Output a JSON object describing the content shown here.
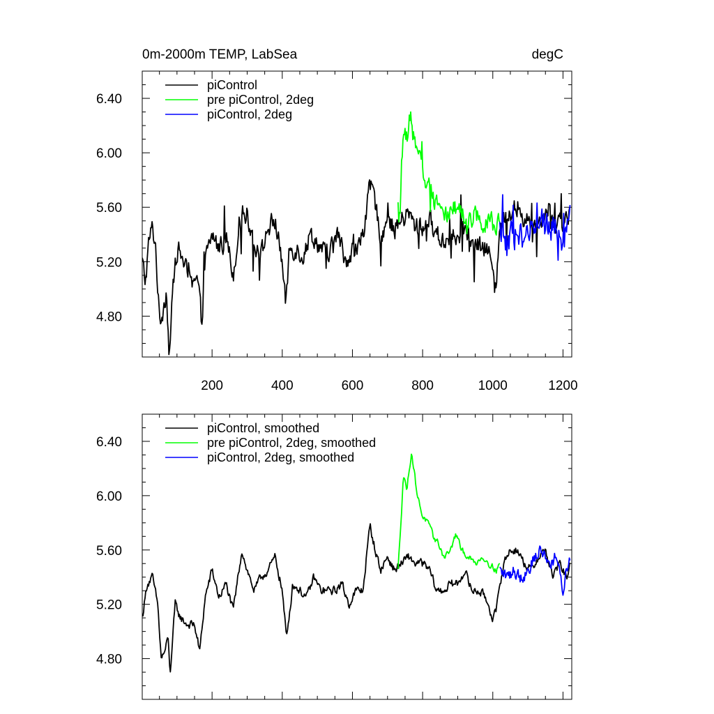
{
  "figure": {
    "title_left": "0m-2000m TEMP, LabSea",
    "title_right": "degC"
  },
  "colors": {
    "piControl": "#000000",
    "pre_piControl_2deg": "#00ff00",
    "piControl_2deg": "#0000ff"
  },
  "chart_data": [
    {
      "type": "line",
      "title": "0m-2000m TEMP, LabSea",
      "units": "degC",
      "xlabel": "",
      "ylabel": "",
      "xlim": [
        1,
        1225
      ],
      "ylim": [
        4.5,
        6.6
      ],
      "xticks": [
        200,
        400,
        600,
        800,
        1000,
        1200
      ],
      "xtick_labels": [
        "200",
        "400",
        "600",
        "800",
        "1000",
        "1200"
      ],
      "yticks": [
        4.8,
        5.2,
        5.6,
        6.0,
        6.4
      ],
      "ytick_labels": [
        "4.80",
        "5.20",
        "5.60",
        "6.00",
        "6.40"
      ],
      "legend_position": "top-left",
      "series": [
        {
          "name": "piControl",
          "color": "#000000",
          "x_range": [
            1,
            1220
          ],
          "anchors": [
            [
              1,
              5.2
            ],
            [
              10,
              5.05
            ],
            [
              20,
              5.35
            ],
            [
              30,
              5.45
            ],
            [
              40,
              5.3
            ],
            [
              50,
              4.75
            ],
            [
              60,
              4.85
            ],
            [
              70,
              5.0
            ],
            [
              78,
              4.52
            ],
            [
              90,
              5.05
            ],
            [
              100,
              5.3
            ],
            [
              120,
              5.2
            ],
            [
              140,
              5.0
            ],
            [
              160,
              5.05
            ],
            [
              170,
              4.75
            ],
            [
              180,
              5.2
            ],
            [
              200,
              5.4
            ],
            [
              220,
              5.3
            ],
            [
              240,
              5.4
            ],
            [
              260,
              5.1
            ],
            [
              280,
              5.55
            ],
            [
              300,
              5.55
            ],
            [
              320,
              5.35
            ],
            [
              340,
              5.25
            ],
            [
              360,
              5.45
            ],
            [
              380,
              5.5
            ],
            [
              400,
              5.2
            ],
            [
              410,
              4.85
            ],
            [
              420,
              5.3
            ],
            [
              440,
              5.3
            ],
            [
              460,
              5.25
            ],
            [
              480,
              5.4
            ],
            [
              500,
              5.35
            ],
            [
              520,
              5.25
            ],
            [
              540,
              5.3
            ],
            [
              560,
              5.4
            ],
            [
              580,
              5.2
            ],
            [
              600,
              5.3
            ],
            [
              620,
              5.3
            ],
            [
              640,
              5.55
            ],
            [
              650,
              5.75
            ],
            [
              660,
              5.7
            ],
            [
              680,
              5.4
            ],
            [
              700,
              5.5
            ],
            [
              720,
              5.45
            ],
            [
              740,
              5.5
            ],
            [
              760,
              5.55
            ],
            [
              780,
              5.45
            ],
            [
              800,
              5.45
            ],
            [
              820,
              5.5
            ],
            [
              840,
              5.4
            ],
            [
              860,
              5.35
            ],
            [
              880,
              5.4
            ],
            [
              900,
              5.35
            ],
            [
              920,
              5.45
            ],
            [
              940,
              5.3
            ],
            [
              960,
              5.3
            ],
            [
              980,
              5.3
            ],
            [
              1000,
              5.2
            ],
            [
              1010,
              5.05
            ],
            [
              1020,
              5.4
            ],
            [
              1040,
              5.55
            ],
            [
              1060,
              5.6
            ],
            [
              1080,
              5.55
            ],
            [
              1100,
              5.5
            ],
            [
              1120,
              5.45
            ],
            [
              1140,
              5.55
            ],
            [
              1160,
              5.6
            ],
            [
              1180,
              5.45
            ],
            [
              1200,
              5.5
            ],
            [
              1220,
              5.55
            ]
          ],
          "noise": 0.12,
          "spike_prob": 0.06
        },
        {
          "name": "pre piControl, 2deg",
          "color": "#00ff00",
          "x_range": [
            730,
            1020
          ],
          "anchors": [
            [
              730,
              5.4
            ],
            [
              735,
              5.6
            ],
            [
              745,
              6.15
            ],
            [
              755,
              6.1
            ],
            [
              765,
              6.3
            ],
            [
              770,
              6.15
            ],
            [
              780,
              6.05
            ],
            [
              790,
              5.95
            ],
            [
              800,
              5.85
            ],
            [
              810,
              5.8
            ],
            [
              820,
              5.75
            ],
            [
              830,
              5.7
            ],
            [
              840,
              5.65
            ],
            [
              850,
              5.6
            ],
            [
              870,
              5.55
            ],
            [
              890,
              5.6
            ],
            [
              910,
              5.55
            ],
            [
              930,
              5.5
            ],
            [
              950,
              5.55
            ],
            [
              970,
              5.5
            ],
            [
              990,
              5.5
            ],
            [
              1010,
              5.45
            ],
            [
              1020,
              5.5
            ]
          ],
          "noise": 0.11,
          "spike_prob": 0.05
        },
        {
          "name": "piControl, 2deg",
          "color": "#0000ff",
          "x_range": [
            1020,
            1220
          ],
          "anchors": [
            [
              1020,
              5.45
            ],
            [
              1040,
              5.35
            ],
            [
              1060,
              5.4
            ],
            [
              1080,
              5.4
            ],
            [
              1100,
              5.35
            ],
            [
              1120,
              5.5
            ],
            [
              1140,
              5.5
            ],
            [
              1160,
              5.45
            ],
            [
              1180,
              5.5
            ],
            [
              1200,
              5.35
            ],
            [
              1210,
              5.4
            ],
            [
              1220,
              5.5
            ]
          ],
          "noise": 0.16,
          "spike_prob": 0.06
        }
      ]
    },
    {
      "type": "line",
      "title": "",
      "units": "degC",
      "xlabel": "",
      "ylabel": "",
      "xlim": [
        1,
        1225
      ],
      "ylim": [
        4.5,
        6.6
      ],
      "xticks": [
        200,
        400,
        600,
        800,
        1000,
        1200
      ],
      "xtick_labels": [],
      "yticks": [
        4.8,
        5.2,
        5.6,
        6.0,
        6.4
      ],
      "ytick_labels": [
        "4.80",
        "5.20",
        "5.60",
        "6.00",
        "6.40"
      ],
      "legend_position": "top-left",
      "series": [
        {
          "name": "piControl, smoothed",
          "color": "#000000",
          "x_range": [
            1,
            1220
          ],
          "anchors": [
            [
              1,
              5.1
            ],
            [
              15,
              5.35
            ],
            [
              30,
              5.4
            ],
            [
              45,
              5.2
            ],
            [
              55,
              4.8
            ],
            [
              65,
              4.85
            ],
            [
              75,
              4.95
            ],
            [
              80,
              4.68
            ],
            [
              95,
              5.2
            ],
            [
              110,
              5.1
            ],
            [
              130,
              5.05
            ],
            [
              150,
              5.05
            ],
            [
              165,
              4.85
            ],
            [
              180,
              5.25
            ],
            [
              200,
              5.45
            ],
            [
              220,
              5.25
            ],
            [
              240,
              5.35
            ],
            [
              260,
              5.15
            ],
            [
              285,
              5.6
            ],
            [
              300,
              5.45
            ],
            [
              320,
              5.3
            ],
            [
              340,
              5.4
            ],
            [
              360,
              5.45
            ],
            [
              380,
              5.55
            ],
            [
              400,
              5.3
            ],
            [
              412,
              4.95
            ],
            [
              430,
              5.35
            ],
            [
              450,
              5.3
            ],
            [
              470,
              5.25
            ],
            [
              490,
              5.4
            ],
            [
              510,
              5.3
            ],
            [
              530,
              5.3
            ],
            [
              550,
              5.3
            ],
            [
              570,
              5.35
            ],
            [
              590,
              5.2
            ],
            [
              610,
              5.3
            ],
            [
              630,
              5.3
            ],
            [
              640,
              5.55
            ],
            [
              650,
              5.78
            ],
            [
              665,
              5.6
            ],
            [
              680,
              5.45
            ],
            [
              700,
              5.55
            ],
            [
              720,
              5.45
            ],
            [
              740,
              5.5
            ],
            [
              760,
              5.55
            ],
            [
              780,
              5.5
            ],
            [
              800,
              5.5
            ],
            [
              820,
              5.45
            ],
            [
              840,
              5.3
            ],
            [
              860,
              5.3
            ],
            [
              880,
              5.35
            ],
            [
              900,
              5.35
            ],
            [
              920,
              5.45
            ],
            [
              940,
              5.3
            ],
            [
              960,
              5.3
            ],
            [
              980,
              5.25
            ],
            [
              1000,
              5.1
            ],
            [
              1010,
              5.15
            ],
            [
              1030,
              5.5
            ],
            [
              1050,
              5.6
            ],
            [
              1070,
              5.6
            ],
            [
              1090,
              5.5
            ],
            [
              1110,
              5.45
            ],
            [
              1130,
              5.55
            ],
            [
              1150,
              5.6
            ],
            [
              1170,
              5.4
            ],
            [
              1190,
              5.5
            ],
            [
              1210,
              5.4
            ],
            [
              1220,
              5.5
            ]
          ],
          "noise": 0.05,
          "spike_prob": 0.0
        },
        {
          "name": "pre piControl, 2deg, smoothed",
          "color": "#00ff00",
          "x_range": [
            730,
            1020
          ],
          "anchors": [
            [
              730,
              5.45
            ],
            [
              740,
              5.9
            ],
            [
              745,
              6.15
            ],
            [
              755,
              6.05
            ],
            [
              768,
              6.32
            ],
            [
              775,
              6.2
            ],
            [
              785,
              6.0
            ],
            [
              800,
              5.85
            ],
            [
              815,
              5.8
            ],
            [
              830,
              5.7
            ],
            [
              845,
              5.65
            ],
            [
              860,
              5.55
            ],
            [
              880,
              5.6
            ],
            [
              895,
              5.72
            ],
            [
              910,
              5.6
            ],
            [
              930,
              5.55
            ],
            [
              950,
              5.5
            ],
            [
              970,
              5.55
            ],
            [
              990,
              5.5
            ],
            [
              1010,
              5.45
            ],
            [
              1020,
              5.5
            ]
          ],
          "noise": 0.035,
          "spike_prob": 0.0
        },
        {
          "name": "piControl, 2deg, smoothed",
          "color": "#0000ff",
          "x_range": [
            1020,
            1220
          ],
          "anchors": [
            [
              1020,
              5.45
            ],
            [
              1040,
              5.4
            ],
            [
              1060,
              5.45
            ],
            [
              1080,
              5.4
            ],
            [
              1100,
              5.45
            ],
            [
              1120,
              5.55
            ],
            [
              1140,
              5.6
            ],
            [
              1160,
              5.5
            ],
            [
              1180,
              5.55
            ],
            [
              1200,
              5.3
            ],
            [
              1210,
              5.45
            ],
            [
              1220,
              5.55
            ]
          ],
          "noise": 0.08,
          "spike_prob": 0.0
        }
      ]
    }
  ]
}
